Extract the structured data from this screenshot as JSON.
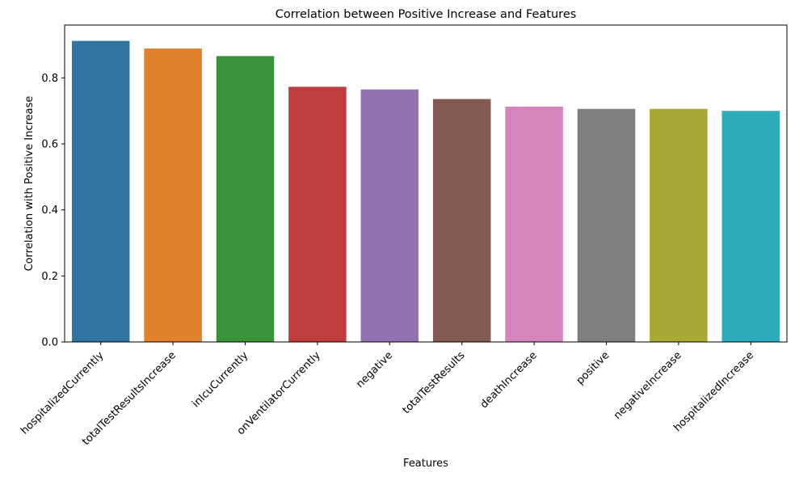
{
  "chart_data": {
    "type": "bar",
    "title": "Correlation between Positive Increase and Features",
    "xlabel": "Features",
    "ylabel": "Correlation with Positive Increase",
    "ylim": [
      0,
      0.96
    ],
    "yticks": [
      0.0,
      0.2,
      0.4,
      0.6,
      0.8
    ],
    "ytick_labels": [
      "0.0",
      "0.2",
      "0.4",
      "0.6",
      "0.8"
    ],
    "grid": false,
    "legend": "none",
    "categories": [
      "hospitalizedCurrently",
      "totalTestResultsIncrease",
      "inIcuCurrently",
      "onVentilatorCurrently",
      "negative",
      "totalTestResults",
      "deathIncrease",
      "positive",
      "negativeIncrease",
      "hospitalizedIncrease"
    ],
    "values": [
      0.912,
      0.889,
      0.866,
      0.773,
      0.765,
      0.736,
      0.713,
      0.706,
      0.706,
      0.7
    ],
    "colors": [
      "#3274a1",
      "#e1812c",
      "#3a923a",
      "#c03d3e",
      "#9372b2",
      "#845b53",
      "#d684bd",
      "#7f7f7f",
      "#a9aa35",
      "#2eabb8"
    ]
  }
}
